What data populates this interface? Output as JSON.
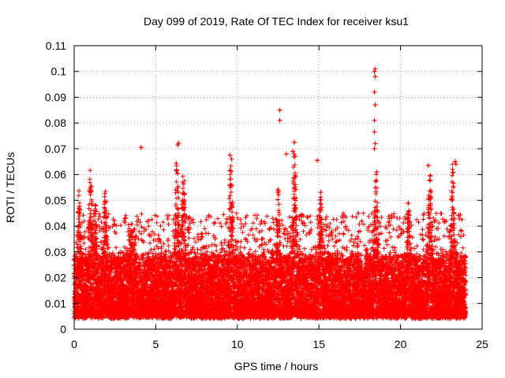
{
  "chart_data": {
    "type": "scatter",
    "title": "Day 099 of 2019, Rate Of TEC Index for receiver ksu1",
    "xlabel": "GPS time / hours",
    "ylabel": "ROTI / TECUs",
    "xlim": [
      0,
      25
    ],
    "ylim": [
      0,
      0.11
    ],
    "x_ticks": [
      "0",
      "5",
      "10",
      "15",
      "20",
      "25"
    ],
    "x_tick_values": [
      0,
      5,
      10,
      15,
      20,
      25
    ],
    "y_ticks": [
      "0",
      "0.01",
      "0.02",
      "0.03",
      "0.04",
      "0.05",
      "0.06",
      "0.07",
      "0.08",
      "0.09",
      "0.1",
      "0.11"
    ],
    "y_tick_values": [
      0,
      0.01,
      0.02,
      0.03,
      0.04,
      0.05,
      0.06,
      0.07,
      0.08,
      0.09,
      0.1,
      0.11
    ],
    "grid": true,
    "marker": "+",
    "color": "#ff0000",
    "sampling_interval_hours": 0.0075,
    "time_range_hours": [
      0,
      24
    ],
    "baseline_range": [
      0.004,
      0.03
    ],
    "burst_envelope": [
      {
        "x": 0.3,
        "ymax": 0.054
      },
      {
        "x": 1.0,
        "ymax": 0.065
      },
      {
        "x": 1.3,
        "ymax": 0.05
      },
      {
        "x": 1.9,
        "ymax": 0.059
      },
      {
        "x": 3.5,
        "ymax": 0.045
      },
      {
        "x": 6.3,
        "ymax": 0.072
      },
      {
        "x": 6.7,
        "ymax": 0.065
      },
      {
        "x": 9.6,
        "ymax": 0.068
      },
      {
        "x": 12.5,
        "ymax": 0.055
      },
      {
        "x": 13.5,
        "ymax": 0.072
      },
      {
        "x": 15.1,
        "ymax": 0.055
      },
      {
        "x": 18.5,
        "ymax": 0.061
      },
      {
        "x": 20.5,
        "ymax": 0.05
      },
      {
        "x": 21.8,
        "ymax": 0.063
      },
      {
        "x": 23.2,
        "ymax": 0.065
      }
    ],
    "outliers": [
      {
        "x": 4.1,
        "y": 0.0705
      },
      {
        "x": 6.4,
        "y": 0.0722
      },
      {
        "x": 6.35,
        "y": 0.0715
      },
      {
        "x": 9.55,
        "y": 0.0675
      },
      {
        "x": 9.65,
        "y": 0.066
      },
      {
        "x": 12.6,
        "y": 0.085
      },
      {
        "x": 12.6,
        "y": 0.081
      },
      {
        "x": 13.0,
        "y": 0.068
      },
      {
        "x": 13.4,
        "y": 0.069
      },
      {
        "x": 13.5,
        "y": 0.0725
      },
      {
        "x": 14.9,
        "y": 0.0655
      },
      {
        "x": 18.4,
        "y": 0.1
      },
      {
        "x": 18.45,
        "y": 0.101
      },
      {
        "x": 18.45,
        "y": 0.098
      },
      {
        "x": 18.4,
        "y": 0.092
      },
      {
        "x": 18.45,
        "y": 0.087
      },
      {
        "x": 18.4,
        "y": 0.081
      },
      {
        "x": 18.4,
        "y": 0.0765
      },
      {
        "x": 18.45,
        "y": 0.072
      },
      {
        "x": 18.4,
        "y": 0.07
      },
      {
        "x": 18.55,
        "y": 0.061
      },
      {
        "x": 21.7,
        "y": 0.0635
      },
      {
        "x": 23.35,
        "y": 0.065
      },
      {
        "x": 23.4,
        "y": 0.064
      }
    ]
  }
}
